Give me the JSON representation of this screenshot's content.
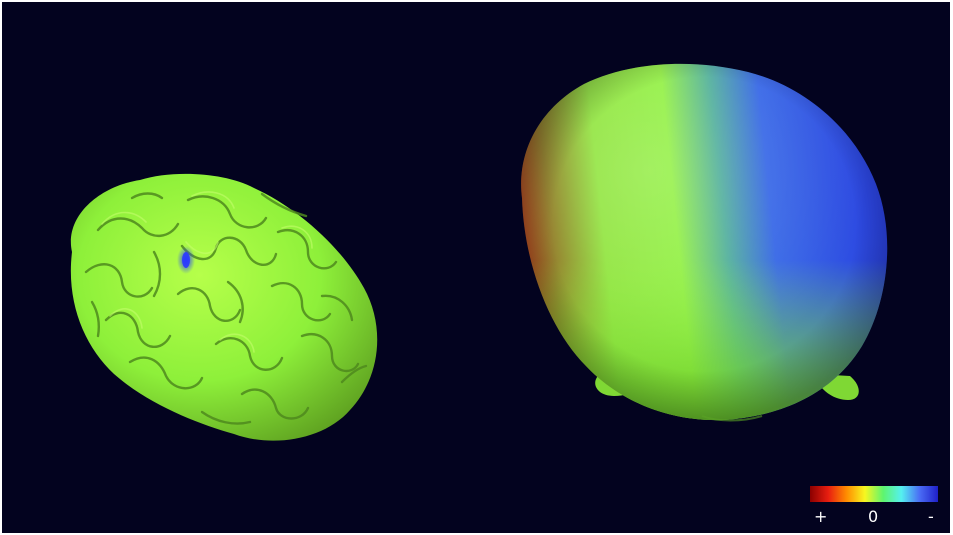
{
  "scene": {
    "background_color": "#03031f",
    "left_object": "brain-cortex-surface",
    "right_object": "head-scalp-surface",
    "surface_color": "#8cf03c"
  },
  "legend": {
    "colors": [
      "#8b0000",
      "#e81e10",
      "#ff8c00",
      "#f7f720",
      "#5ef56e",
      "#55f0f0",
      "#4a6cf5",
      "#1f20c8"
    ],
    "labels": {
      "plus": "+",
      "zero": "0",
      "minus": "-"
    }
  }
}
